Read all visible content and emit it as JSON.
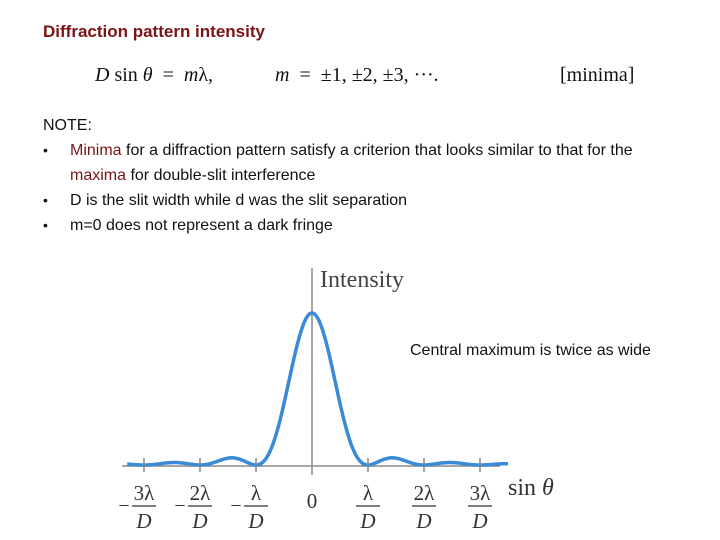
{
  "slide": {
    "title": "Diffraction pattern intensity",
    "equation": {
      "left": "D sin θ  =  mλ,",
      "mid": "m  =  ±1, ±2, ±3, ···.",
      "tag": "[minima]"
    },
    "note_heading": "NOTE:",
    "bullets": [
      {
        "pre": "",
        "hl1": "Minima",
        "mid": " for a diffraction pattern satisfy a criterion that looks similar to that for the ",
        "hl2": "maxima",
        "post": " for double-slit interference"
      },
      {
        "text": "D is the slit width while d was the slit separation"
      },
      {
        "text": "m=0 does not represent a dark fringe"
      }
    ],
    "callout": "Central maximum is twice as wide"
  },
  "chart_data": {
    "type": "line",
    "ylabel": "Intensity",
    "xlabel": "sin θ",
    "x_ticks": [
      {
        "num": "3λ",
        "den": "D",
        "sign": "−"
      },
      {
        "num": "2λ",
        "den": "D",
        "sign": "−"
      },
      {
        "num": "λ",
        "den": "D",
        "sign": "−"
      },
      {
        "num": "0",
        "den": "",
        "sign": ""
      },
      {
        "num": "λ",
        "den": "D",
        "sign": ""
      },
      {
        "num": "2λ",
        "den": "D",
        "sign": ""
      },
      {
        "num": "3λ",
        "den": "D",
        "sign": ""
      }
    ],
    "x_range": [
      -3.3,
      3.5
    ],
    "y_range": [
      0,
      1
    ],
    "curve": "sinc²(πx), central maximum = 1, minima at x = ±1, ±2, ±3",
    "curve_color": "#3a8bd6"
  }
}
